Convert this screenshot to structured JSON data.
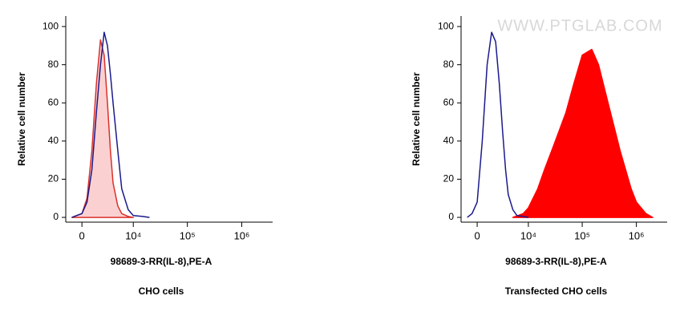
{
  "chart_data": [
    {
      "type": "line",
      "xscale": "biexponential",
      "ylabel": "Relative cell number",
      "xlabel": "98689-3-RR(IL-8),PE-A",
      "caption": "CHO cells",
      "xlim": [
        -1700,
        3700000
      ],
      "ylim": [
        -2.5,
        105.5
      ],
      "xticks": [
        0,
        {
          "value": 10000,
          "label": "10⁴"
        },
        {
          "value": 100000,
          "label": "10⁵"
        },
        {
          "value": 1000000,
          "label": "10⁶"
        }
      ],
      "yticks": [
        0,
        20,
        40,
        60,
        80,
        100
      ],
      "series": [
        {
          "color": "#d9312b",
          "fill": "#fbd0d0",
          "x": [
            -1000,
            -500,
            0,
            500,
            1000,
            1500,
            2000,
            2500,
            3000,
            3500,
            4000,
            5000,
            6000,
            8000,
            10000
          ],
          "values": [
            0,
            1,
            2,
            10,
            35,
            70,
            93,
            85,
            60,
            35,
            18,
            6,
            2,
            0.5,
            0
          ]
        },
        {
          "color": "#1a1a8c",
          "x": [
            -1000,
            -500,
            0,
            500,
            1000,
            1500,
            2000,
            2500,
            3000,
            3500,
            4000,
            5000,
            6000,
            8000,
            10000,
            15000,
            20000
          ],
          "values": [
            0,
            1,
            2,
            8,
            25,
            55,
            80,
            97,
            90,
            75,
            60,
            35,
            15,
            4,
            1,
            0.5,
            0
          ]
        }
      ]
    },
    {
      "type": "line",
      "xscale": "biexponential",
      "ylabel": "Relative cell number",
      "xlabel": "98689-3-RR(IL-8),PE-A",
      "caption": "Transfected CHO cells",
      "watermark": "WWW.PTGLAB.COM",
      "xlim": [
        -1700,
        3700000
      ],
      "ylim": [
        -2.5,
        105.5
      ],
      "xticks": [
        0,
        {
          "value": 10000,
          "label": "10⁴"
        },
        {
          "value": 100000,
          "label": "10⁵"
        },
        {
          "value": 1000000,
          "label": "10⁶"
        }
      ],
      "yticks": [
        0,
        20,
        40,
        60,
        80,
        100
      ],
      "series": [
        {
          "color": "#ff0000",
          "fill": "#ff0000",
          "x": [
            5000,
            8000,
            10000,
            15000,
            20000,
            30000,
            50000,
            70000,
            100000,
            150000,
            200000,
            300000,
            500000,
            800000,
            1000000,
            1500000,
            2000000
          ],
          "values": [
            0,
            2,
            5,
            15,
            25,
            38,
            55,
            70,
            85,
            88,
            80,
            60,
            35,
            15,
            8,
            2,
            0
          ]
        },
        {
          "color": "#1a1a8c",
          "x": [
            -1000,
            -500,
            0,
            500,
            1000,
            1500,
            2000,
            2500,
            3000,
            3500,
            4000,
            5000,
            6000,
            8000,
            10000
          ],
          "values": [
            0,
            2,
            8,
            40,
            80,
            97,
            92,
            70,
            45,
            25,
            12,
            4,
            1,
            0.5,
            0
          ]
        }
      ]
    }
  ]
}
